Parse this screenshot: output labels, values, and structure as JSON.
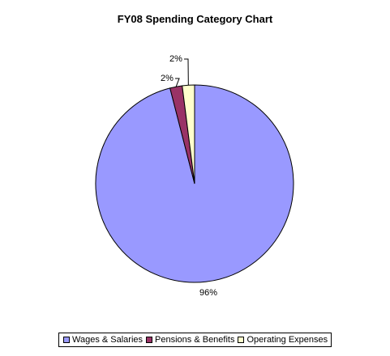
{
  "chart_data": {
    "type": "pie",
    "title": "FY08 Spending Category Chart",
    "categories": [
      "Wages & Salaries",
      "Pensions & Benefits",
      "Operating Expenses"
    ],
    "values": [
      96,
      2,
      2
    ],
    "labels": [
      "96%",
      "2%",
      "2%"
    ],
    "colors": [
      "#9999ff",
      "#993366",
      "#ffffcc"
    ],
    "legend_position": "bottom"
  }
}
